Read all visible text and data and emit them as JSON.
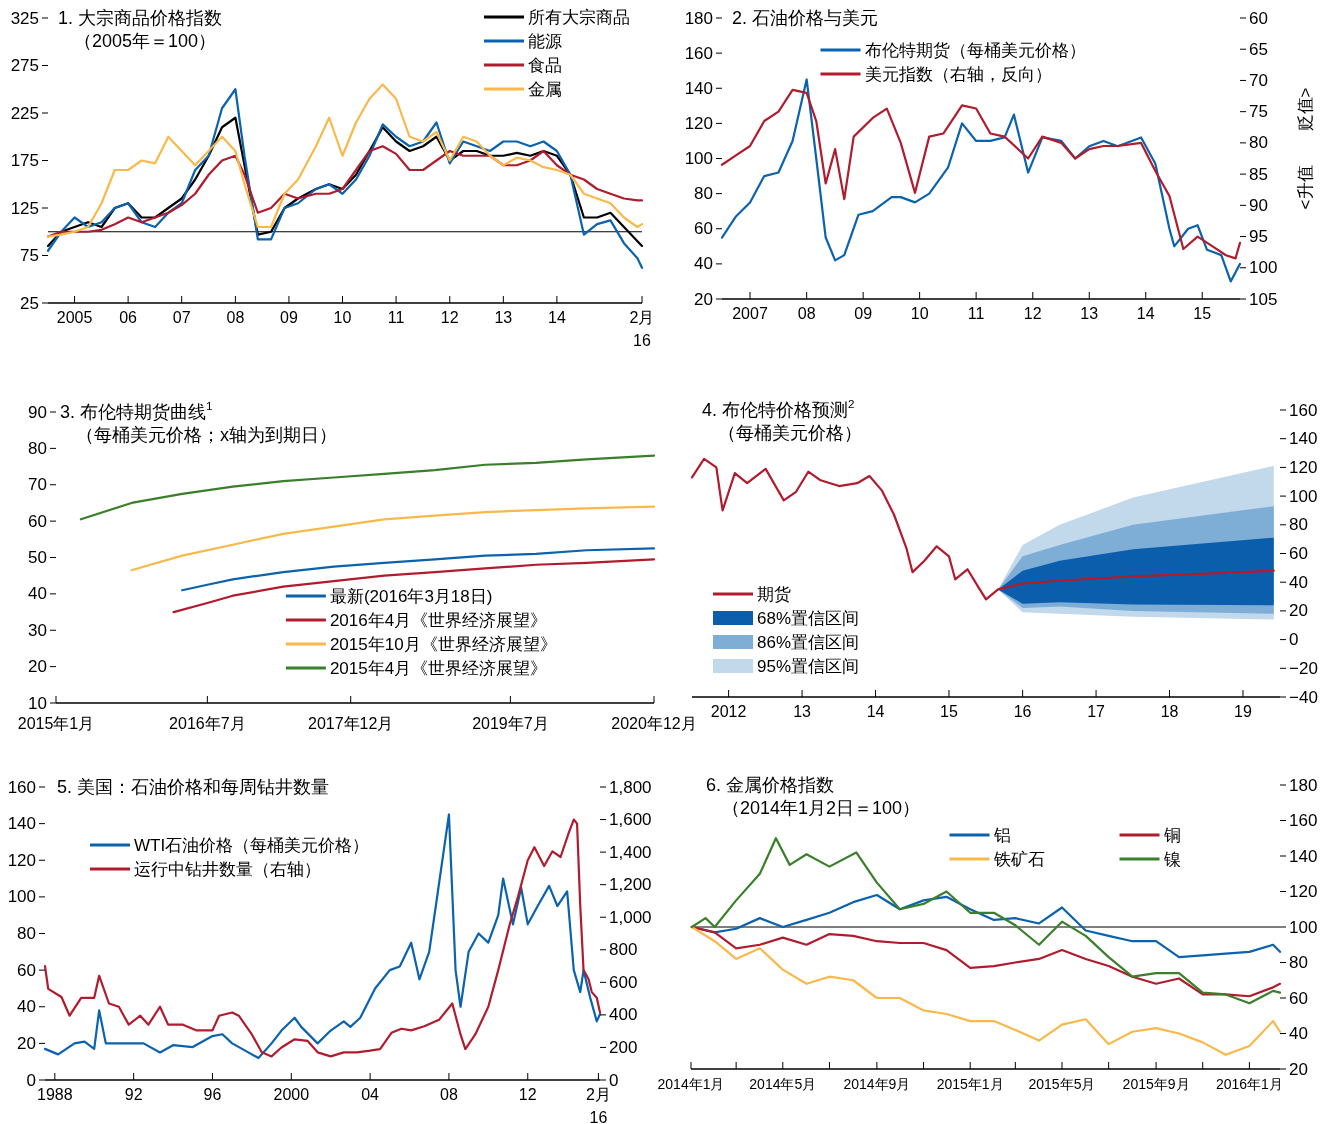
{
  "chart_data": [
    {
      "type": "line",
      "title": "1. 大宗商品价格指数",
      "subtitle": "（2005年＝100）",
      "legend": "top right",
      "x": [
        "2005-01",
        "2005-04",
        "2005-07",
        "2005-10",
        "2006-01",
        "2006-04",
        "2006-07",
        "2006-10",
        "2007-01",
        "2007-04",
        "2007-07",
        "2007-10",
        "2008-01",
        "2008-04",
        "2008-07",
        "2008-09",
        "2008-12",
        "2009-03",
        "2009-06",
        "2009-09",
        "2010-01",
        "2010-04",
        "2010-07",
        "2010-10",
        "2011-01",
        "2011-04",
        "2011-07",
        "2011-10",
        "2012-01",
        "2012-04",
        "2012-07",
        "2012-10",
        "2013-01",
        "2013-04",
        "2013-07",
        "2013-10",
        "2014-01",
        "2014-04",
        "2014-07",
        "2014-10",
        "2015-01",
        "2015-04",
        "2015-07",
        "2015-10",
        "2016-01",
        "2016-02"
      ],
      "xlim": [
        "2005-01",
        "2016-02"
      ],
      "xticks": [
        {
          "value": "2005-07",
          "label": "2005"
        },
        {
          "value": "2006-07",
          "label": "06"
        },
        {
          "value": "2007-07",
          "label": "07"
        },
        {
          "value": "2008-07",
          "label": "08"
        },
        {
          "value": "2009-07",
          "label": "09"
        },
        {
          "value": "2010-07",
          "label": "10"
        },
        {
          "value": "2011-07",
          "label": "11"
        },
        {
          "value": "2012-07",
          "label": "12"
        },
        {
          "value": "2013-07",
          "label": "13"
        },
        {
          "value": "2014-07",
          "label": "14"
        },
        {
          "value": "2016-02",
          "label": "2月\n16"
        }
      ],
      "ylim": [
        25,
        325
      ],
      "yticks": [
        25,
        75,
        125,
        175,
        225,
        275,
        325
      ],
      "ref_lines": [
        {
          "axis": "y",
          "value": 100,
          "color": "#000000"
        }
      ],
      "series": [
        {
          "name": "所有大宗商品",
          "color": "#000000",
          "values": [
            85,
            100,
            105,
            110,
            105,
            125,
            130,
            115,
            115,
            125,
            135,
            155,
            180,
            210,
            220,
            170,
            97,
            100,
            125,
            135,
            145,
            150,
            145,
            160,
            185,
            210,
            195,
            185,
            190,
            200,
            175,
            185,
            185,
            180,
            180,
            183,
            180,
            185,
            180,
            160,
            115,
            115,
            120,
            105,
            90,
            85
          ]
        },
        {
          "name": "能源",
          "color": "#0b62ae",
          "values": [
            80,
            100,
            115,
            105,
            110,
            125,
            130,
            110,
            105,
            120,
            130,
            165,
            180,
            230,
            250,
            180,
            92,
            92,
            125,
            130,
            145,
            150,
            140,
            155,
            180,
            213,
            200,
            190,
            195,
            215,
            172,
            195,
            190,
            185,
            195,
            195,
            190,
            195,
            185,
            160,
            97,
            108,
            112,
            88,
            72,
            62
          ]
        },
        {
          "name": "食品",
          "color": "#b01c2e",
          "values": [
            95,
            100,
            100,
            100,
            102,
            108,
            115,
            110,
            115,
            120,
            128,
            140,
            160,
            175,
            180,
            160,
            120,
            125,
            140,
            135,
            140,
            140,
            145,
            165,
            185,
            190,
            182,
            165,
            165,
            175,
            185,
            180,
            180,
            180,
            170,
            170,
            175,
            185,
            170,
            160,
            155,
            145,
            140,
            135,
            133,
            133
          ]
        },
        {
          "name": "金属",
          "color": "#f9b94a",
          "values": [
            95,
            97,
            100,
            105,
            130,
            165,
            165,
            175,
            172,
            200,
            185,
            170,
            185,
            200,
            185,
            150,
            105,
            105,
            140,
            155,
            190,
            220,
            180,
            215,
            240,
            255,
            240,
            200,
            195,
            205,
            175,
            200,
            195,
            180,
            170,
            178,
            175,
            168,
            165,
            160,
            140,
            135,
            130,
            115,
            105,
            108
          ]
        }
      ]
    },
    {
      "type": "line",
      "title": "2. 石油价格与美元",
      "y2label": "<升值　　贬值>",
      "legend": "top",
      "xlim": [
        "2007-01",
        "2016-03"
      ],
      "xticks": [
        {
          "value": "2007-07",
          "label": "2007"
        },
        {
          "value": "2008-07",
          "label": "08"
        },
        {
          "value": "2009-07",
          "label": "09"
        },
        {
          "value": "2010-07",
          "label": "10"
        },
        {
          "value": "2011-07",
          "label": "11"
        },
        {
          "value": "2012-07",
          "label": "12"
        },
        {
          "value": "2013-07",
          "label": "13"
        },
        {
          "value": "2014-07",
          "label": "14"
        },
        {
          "value": "2015-07",
          "label": "15"
        }
      ],
      "ylim": [
        20,
        180
      ],
      "yticks": [
        20,
        40,
        60,
        80,
        100,
        120,
        140,
        160,
        180
      ],
      "y2lim": [
        105,
        60
      ],
      "y2ticks": [
        60,
        65,
        70,
        75,
        80,
        85,
        90,
        95,
        100,
        105
      ],
      "series": [
        {
          "name": "布伦特期货（每桶美元价格）",
          "color": "#0b62ae",
          "x": [
            "2007-01",
            "2007-04",
            "2007-07",
            "2007-10",
            "2008-01",
            "2008-04",
            "2008-07",
            "2008-09",
            "2008-11",
            "2009-01",
            "2009-03",
            "2009-06",
            "2009-09",
            "2010-01",
            "2010-03",
            "2010-06",
            "2010-09",
            "2011-01",
            "2011-04",
            "2011-07",
            "2011-10",
            "2012-01",
            "2012-03",
            "2012-06",
            "2012-09",
            "2013-01",
            "2013-04",
            "2013-07",
            "2013-10",
            "2014-01",
            "2014-06",
            "2014-09",
            "2014-12",
            "2015-01",
            "2015-04",
            "2015-06",
            "2015-08",
            "2015-11",
            "2016-01",
            "2016-03"
          ],
          "values": [
            55,
            67,
            75,
            90,
            92,
            110,
            145,
            100,
            55,
            42,
            45,
            68,
            70,
            78,
            78,
            75,
            80,
            95,
            120,
            110,
            110,
            112,
            125,
            92,
            112,
            110,
            100,
            107,
            110,
            107,
            112,
            97,
            60,
            50,
            60,
            62,
            48,
            45,
            30,
            40
          ]
        },
        {
          "name": "美元指数（右轴，反向）",
          "color": "#b01c2e",
          "axis": "y2",
          "x": [
            "2007-01",
            "2007-04",
            "2007-07",
            "2007-10",
            "2008-01",
            "2008-04",
            "2008-07",
            "2008-09",
            "2008-11",
            "2009-01",
            "2009-03",
            "2009-05",
            "2009-09",
            "2009-12",
            "2010-03",
            "2010-06",
            "2010-09",
            "2010-12",
            "2011-04",
            "2011-07",
            "2011-10",
            "2012-01",
            "2012-06",
            "2012-09",
            "2013-01",
            "2013-04",
            "2013-07",
            "2013-10",
            "2014-01",
            "2014-06",
            "2014-09",
            "2014-12",
            "2015-03",
            "2015-06",
            "2015-09",
            "2015-12",
            "2016-02",
            "2016-03"
          ],
          "values": [
            83.5,
            82,
            80.5,
            76.5,
            75,
            71.5,
            72,
            76.5,
            86.5,
            81,
            89,
            79,
            76,
            74.5,
            80,
            88,
            79,
            78.5,
            74,
            74.5,
            78.5,
            79,
            82.5,
            79,
            80,
            82.5,
            81,
            80.5,
            80.5,
            80,
            84.5,
            88.5,
            97,
            95,
            96.5,
            98,
            98.5,
            96
          ]
        }
      ]
    },
    {
      "type": "line",
      "title": "3. 布伦特期货曲线$^{1}$",
      "subtitle": "（每桶美元价格；x轴为到期日）",
      "legend": "bottom right",
      "xlim": [
        "2015-01",
        "2020-12"
      ],
      "xticks": [
        {
          "value": "2015-01",
          "label": "2015年1月"
        },
        {
          "value": "2016-07",
          "label": "2016年7月"
        },
        {
          "value": "2017-12",
          "label": "2017年12月"
        },
        {
          "value": "2019-07",
          "label": "2019年7月"
        },
        {
          "value": "2020-12",
          "label": "2020年12月"
        }
      ],
      "ylim": [
        10,
        90
      ],
      "yticks": [
        10,
        20,
        30,
        40,
        50,
        60,
        70,
        80,
        90
      ],
      "series": [
        {
          "name": "最新(2016年3月18日)",
          "color": "#0b62ae",
          "x": [
            "2016-04",
            "2016-07",
            "2016-10",
            "2017-04",
            "2017-10",
            "2018-04",
            "2018-10",
            "2019-04",
            "2019-10",
            "2020-04",
            "2020-12"
          ],
          "values": [
            41,
            42.5,
            44,
            46,
            47.5,
            48.5,
            49.5,
            50.5,
            51,
            52,
            52.5
          ]
        },
        {
          "name": "2016年4月《世界经济展望》",
          "color": "#b01c2e",
          "x": [
            "2016-03",
            "2016-07",
            "2016-10",
            "2017-04",
            "2017-10",
            "2018-04",
            "2018-10",
            "2019-04",
            "2019-10",
            "2020-04",
            "2020-12"
          ],
          "values": [
            35,
            37.5,
            39.5,
            42,
            43.5,
            45,
            46,
            47,
            48,
            48.5,
            49.5
          ]
        },
        {
          "name": "2015年10月《世界经济展望》",
          "color": "#f9b94a",
          "x": [
            "2015-10",
            "2016-04",
            "2016-10",
            "2017-04",
            "2017-10",
            "2018-04",
            "2018-10",
            "2019-04",
            "2019-10",
            "2020-04",
            "2020-12"
          ],
          "values": [
            46.5,
            50.5,
            53.5,
            56.5,
            58.5,
            60.5,
            61.5,
            62.5,
            63,
            63.5,
            64
          ]
        },
        {
          "name": "2015年4月《世界经济展望》",
          "color": "#3a7f2a",
          "x": [
            "2015-04",
            "2015-10",
            "2016-04",
            "2016-10",
            "2017-04",
            "2017-10",
            "2018-04",
            "2018-10",
            "2019-04",
            "2019-10",
            "2020-04",
            "2020-12"
          ],
          "values": [
            60.5,
            65,
            67.5,
            69.5,
            71,
            72,
            73,
            74,
            75.5,
            76,
            77,
            78
          ]
        }
      ]
    },
    {
      "type": "line",
      "title": "4. 布伦特价格预测$^{2}$",
      "subtitle": "（每桶美元价格）",
      "legend": "bottom left",
      "xlim": [
        "2012-01",
        "2020-01"
      ],
      "xticks": [
        {
          "value": "2012-07",
          "label": "2012"
        },
        {
          "value": "2013-07",
          "label": "13"
        },
        {
          "value": "2014-07",
          "label": "14"
        },
        {
          "value": "2015-07",
          "label": "15"
        },
        {
          "value": "2016-07",
          "label": "16"
        },
        {
          "value": "2017-07",
          "label": "17"
        },
        {
          "value": "2018-07",
          "label": "18"
        },
        {
          "value": "2019-07",
          "label": "19"
        }
      ],
      "ylim": [
        -40,
        160
      ],
      "yticks": [
        {
          "value": -40,
          "label": "−40"
        },
        {
          "value": -20,
          "label": "−20"
        },
        0,
        20,
        40,
        60,
        80,
        100,
        120,
        140,
        160
      ],
      "series": [
        {
          "name": "期货",
          "color": "#b01c2e",
          "x": [
            "2012-01",
            "2012-03",
            "2012-05",
            "2012-06",
            "2012-08",
            "2012-10",
            "2013-01",
            "2013-04",
            "2013-06",
            "2013-08",
            "2013-10",
            "2014-01",
            "2014-04",
            "2014-06",
            "2014-08",
            "2014-10",
            "2014-12",
            "2015-01",
            "2015-03",
            "2015-05",
            "2015-07",
            "2015-08",
            "2015-10",
            "2015-12",
            "2016-01",
            "2016-03",
            "2016-07",
            "2017-01",
            "2018-01",
            "2019-01",
            "2019-12"
          ],
          "values": [
            113,
            126,
            120,
            90,
            116,
            109,
            119,
            97,
            103,
            117,
            111,
            107,
            109,
            114,
            104,
            87,
            64,
            47,
            55,
            65,
            58,
            42,
            49,
            35,
            28,
            35,
            39,
            41,
            44,
            46,
            48
          ]
        },
        {
          "name": "68%置信区间",
          "color": "#0a5eac",
          "x": [
            "2016-03",
            "2016-07",
            "2017-01",
            "2018-01",
            "2019-12"
          ],
          "values": [
            null,
            null,
            null,
            null,
            null
          ],
          "lower": [
            35,
            25,
            26,
            24.5,
            24
          ],
          "upper": [
            35,
            48,
            55,
            63,
            71
          ]
        },
        {
          "name": "86%置信区间",
          "color": "#7eadd6",
          "x": [
            "2016-03",
            "2016-07",
            "2017-01",
            "2018-01",
            "2019-12"
          ],
          "values": [
            null,
            null,
            null,
            null,
            null
          ],
          "lower": [
            35,
            22,
            23,
            20,
            18
          ],
          "upper": [
            35,
            58,
            66,
            80,
            93
          ]
        },
        {
          "name": "95%置信区间",
          "color": "#c2d8eb",
          "x": [
            "2016-03",
            "2016-07",
            "2017-01",
            "2018-01",
            "2019-12"
          ],
          "values": [
            null,
            null,
            null,
            null,
            null
          ],
          "lower": [
            35,
            19,
            18,
            16,
            14
          ],
          "upper": [
            35,
            66,
            80,
            99,
            121
          ]
        }
      ]
    },
    {
      "type": "line",
      "title": "5. 美国：石油价格和每周钻井数量",
      "legend": "top left",
      "xlim": [
        "1988-01",
        "2016-03"
      ],
      "xticks": [
        {
          "value": "1988-07",
          "label": "1988"
        },
        {
          "value": "1992-07",
          "label": "92"
        },
        {
          "value": "1996-07",
          "label": "96"
        },
        {
          "value": "2000-07",
          "label": "2000"
        },
        {
          "value": "2004-07",
          "label": "04"
        },
        {
          "value": "2008-07",
          "label": "08"
        },
        {
          "value": "2012-07",
          "label": "12"
        },
        {
          "value": "2016-02",
          "label": "2月\n16"
        }
      ],
      "ylim": [
        0,
        160
      ],
      "yticks": [
        0,
        20,
        40,
        60,
        80,
        100,
        120,
        140,
        160
      ],
      "y2lim": [
        0,
        1800
      ],
      "y2ticks": [
        0,
        200,
        400,
        600,
        800,
        {
          "value": 1000,
          "label": "1,000"
        },
        {
          "value": 1200,
          "label": "1,200"
        },
        {
          "value": 1400,
          "label": "1,400"
        },
        {
          "value": 1600,
          "label": "1,600"
        },
        {
          "value": 1800,
          "label": "1,800"
        }
      ],
      "series": [
        {
          "name": "WTI石油价格（每桶美元价格）",
          "color": "#0b62ae",
          "x": [
            "1988-01",
            "1988-09",
            "1989-07",
            "1990-01",
            "1990-07",
            "1990-10",
            "1991-02",
            "1992-01",
            "1993-01",
            "1993-11",
            "1994-07",
            "1995-07",
            "1996-07",
            "1997-01",
            "1997-07",
            "1998-01",
            "1998-11",
            "1999-07",
            "2000-01",
            "2000-09",
            "2001-01",
            "2001-11",
            "2002-07",
            "2003-03",
            "2003-07",
            "2004-01",
            "2004-10",
            "2005-07",
            "2006-01",
            "2006-08",
            "2007-01",
            "2007-07",
            "2007-11",
            "2008-07",
            "2008-11",
            "2009-02",
            "2009-07",
            "2010-01",
            "2010-07",
            "2011-01",
            "2011-04",
            "2011-10",
            "2012-03",
            "2012-07",
            "2013-01",
            "2013-08",
            "2014-01",
            "2014-07",
            "2014-11",
            "2015-03",
            "2015-05",
            "2015-09",
            "2016-01",
            "2016-03"
          ],
          "values": [
            17,
            14,
            20,
            21,
            17,
            38,
            20,
            20,
            20,
            15,
            19,
            18,
            24,
            25,
            20,
            17,
            12,
            20,
            27,
            34,
            29,
            20,
            27,
            32,
            29,
            34,
            50,
            60,
            62,
            75,
            55,
            70,
            95,
            145,
            60,
            40,
            70,
            80,
            75,
            90,
            110,
            85,
            105,
            85,
            95,
            106,
            95,
            103,
            60,
            48,
            60,
            45,
            32,
            36
          ]
        },
        {
          "name": "运行中钻井数量（右轴）",
          "color": "#b01c2e",
          "axis": "y2",
          "x": [
            "1988-01",
            "1988-03",
            "1988-11",
            "1989-04",
            "1989-11",
            "1990-07",
            "1990-10",
            "1991-04",
            "1991-10",
            "1992-04",
            "1992-11",
            "1993-04",
            "1993-11",
            "1994-04",
            "1995-01",
            "1995-09",
            "1996-07",
            "1996-11",
            "1997-07",
            "1997-11",
            "1998-07",
            "1999-01",
            "1999-07",
            "2000-01",
            "2000-09",
            "2001-05",
            "2001-11",
            "2002-07",
            "2003-03",
            "2003-11",
            "2004-07",
            "2005-01",
            "2005-08",
            "2006-02",
            "2006-08",
            "2007-04",
            "2008-01",
            "2008-09",
            "2009-02",
            "2009-05",
            "2009-11",
            "2010-07",
            "2011-01",
            "2011-08",
            "2012-01",
            "2012-07",
            "2012-11",
            "2013-05",
            "2013-10",
            "2014-03",
            "2014-08",
            "2014-11",
            "2015-01",
            "2015-03",
            "2015-05",
            "2015-08",
            "2015-10",
            "2016-01",
            "2016-03"
          ],
          "values": [
            700,
            560,
            510,
            395,
            505,
            505,
            640,
            470,
            450,
            340,
            395,
            340,
            450,
            340,
            340,
            305,
            305,
            395,
            415,
            395,
            280,
            170,
            145,
            200,
            250,
            240,
            170,
            145,
            170,
            170,
            180,
            190,
            290,
            315,
            305,
            330,
            370,
            470,
            280,
            190,
            280,
            450,
            675,
            955,
            1125,
            1350,
            1430,
            1315,
            1405,
            1370,
            1520,
            1600,
            1575,
            1070,
            675,
            620,
            540,
            505,
            415
          ]
        }
      ]
    },
    {
      "type": "line",
      "title": "6. 金属价格指数",
      "subtitle": "（2014年1月2日＝100）",
      "legend": "top",
      "xlim": [
        "2014-01-01",
        "2016-02-10"
      ],
      "xticks": [
        {
          "value": "2014-01",
          "label": "2014年1月"
        },
        {
          "value": "2014-03",
          "label": null
        },
        {
          "value": "2014-05",
          "label": "2014年5月"
        },
        {
          "value": "2014-07",
          "label": null
        },
        {
          "value": "2014-09",
          "label": "2014年9月"
        },
        {
          "value": "2014-11",
          "label": null
        },
        {
          "value": "2015-01",
          "label": "2015年1月"
        },
        {
          "value": "2015-03",
          "label": null
        },
        {
          "value": "2015-05",
          "label": "2015年5月"
        },
        {
          "value": "2015-07",
          "label": null
        },
        {
          "value": "2015-09",
          "label": "2015年9月"
        },
        {
          "value": "2015-11",
          "label": null
        },
        {
          "value": "2016-01",
          "label": "2016年1月"
        }
      ],
      "ylim": [
        20,
        180
      ],
      "yticks": [
        20,
        40,
        60,
        80,
        100,
        120,
        140,
        160,
        180
      ],
      "ref_lines": [
        {
          "axis": "y",
          "value": 100,
          "color": "#000000"
        }
      ],
      "x": [
        "2014-01-02",
        "2014-02",
        "2014-03",
        "2014-04",
        "2014-05",
        "2014-06",
        "2014-07",
        "2014-08",
        "2014-09",
        "2014-10",
        "2014-11",
        "2014-12",
        "2015-01",
        "2015-02",
        "2015-03",
        "2015-04",
        "2015-05",
        "2015-06",
        "2015-07",
        "2015-08",
        "2015-09",
        "2015-10",
        "2015-11",
        "2015-12",
        "2016-01",
        "2016-02",
        "2016-02-10"
      ],
      "series": [
        {
          "name": "铝",
          "color": "#0b62ae",
          "values": [
            100,
            97,
            99,
            105,
            100,
            104,
            108,
            114,
            118,
            110,
            115,
            117,
            110,
            104,
            105,
            102,
            111,
            98,
            95,
            92,
            92,
            83,
            84,
            85,
            86,
            90,
            86
          ]
        },
        {
          "name": "铜",
          "color": "#b01c2e",
          "values": [
            100,
            97,
            88,
            90,
            94,
            90,
            96,
            95,
            92,
            91,
            91,
            87,
            77,
            78,
            80,
            82,
            87,
            82,
            78,
            72,
            68,
            71,
            62,
            62,
            61,
            66,
            68
          ]
        },
        {
          "name": "铁矿石",
          "color": "#f9b94a",
          "values": [
            100,
            92,
            82,
            88,
            76,
            68,
            72,
            70,
            60,
            60,
            53,
            51,
            47,
            47,
            42,
            36,
            45,
            48,
            34,
            41,
            43,
            40,
            35,
            28,
            33,
            47,
            41
          ]
        },
        {
          "name": "镍",
          "color": "#3a7f2a",
          "x": [
            "2014-01-02",
            "2014-01-20",
            "2014-02",
            "2014-03",
            "2014-04",
            "2014-04-22",
            "2014-05-10",
            "2014-06",
            "2014-07",
            "2014-08-05",
            "2014-09",
            "2014-10",
            "2014-11",
            "2014-12",
            "2015-01",
            "2015-02",
            "2015-03",
            "2015-04",
            "2015-05",
            "2015-06",
            "2015-07",
            "2015-08",
            "2015-09",
            "2015-10",
            "2015-11",
            "2015-12",
            "2016-01",
            "2016-02",
            "2016-02-10"
          ],
          "values": [
            100,
            105,
            100,
            115,
            130,
            150,
            135,
            141,
            134,
            142,
            125,
            110,
            113,
            120,
            108,
            108,
            101,
            90,
            103,
            95,
            83,
            72,
            74,
            74,
            63,
            62,
            57,
            64,
            63
          ]
        }
      ]
    }
  ]
}
